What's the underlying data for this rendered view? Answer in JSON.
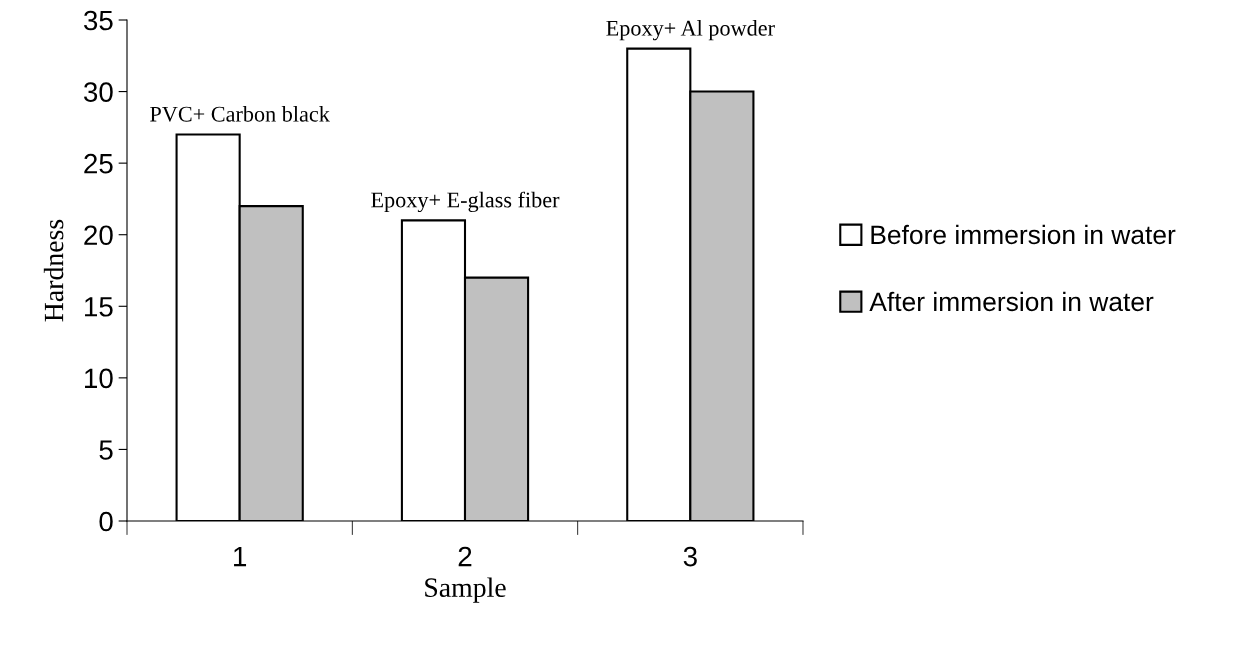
{
  "chart_data": {
    "type": "bar",
    "xlabel": "Sample",
    "ylabel": "Hardness",
    "categories": [
      "1",
      "2",
      "3"
    ],
    "series": [
      {
        "name": "Before immersion in water",
        "color": "#ffffff",
        "values": [
          27,
          21,
          33
        ]
      },
      {
        "name": "After immersion in water",
        "color": "#c0c0c0",
        "values": [
          22,
          17,
          30
        ]
      }
    ],
    "annotations": [
      {
        "text": "PVC+ Carbon black",
        "x": "1",
        "y": 27
      },
      {
        "text": "Epoxy+ E-glass fiber",
        "x": "2",
        "y": 21
      },
      {
        "text": "Epoxy+ Al powder",
        "x": "3",
        "y": 33
      }
    ],
    "ylim": [
      0,
      35
    ],
    "yticks": [
      0,
      5,
      10,
      15,
      20,
      25,
      30,
      35
    ],
    "grid": false,
    "legend": "right"
  }
}
